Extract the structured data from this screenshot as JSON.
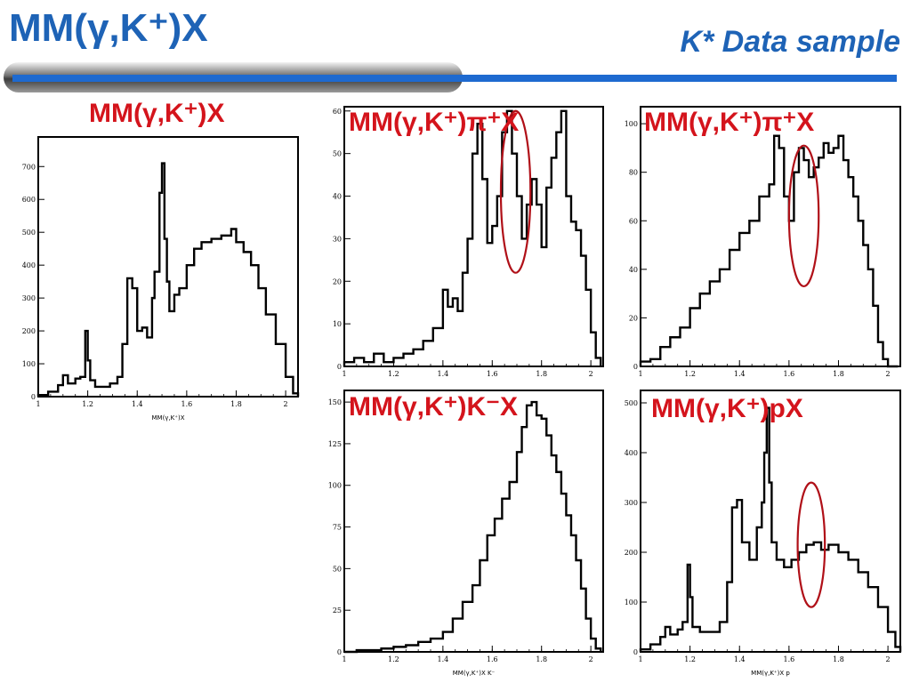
{
  "page": {
    "title": "MM(γ,K⁺)X",
    "subtitle": "K* Data sample"
  },
  "colors": {
    "title": "#1e63b6",
    "label": "#d4141c",
    "accent_bar": "#1e6ad0",
    "ellipse": "#b01018"
  },
  "chart_data": [
    {
      "id": "p1",
      "type": "histogram",
      "label": "MM(γ,K⁺)X",
      "xlabel": "MM(γ,K⁺)X",
      "xlim": [
        1.0,
        2.05
      ],
      "ylim": [
        0,
        790
      ],
      "xticks": [
        1,
        1.2,
        1.4,
        1.6,
        1.8,
        2
      ],
      "yticks": [
        0,
        100,
        200,
        300,
        400,
        500,
        600,
        700
      ],
      "x": [
        1.0,
        1.04,
        1.08,
        1.1,
        1.12,
        1.15,
        1.17,
        1.19,
        1.2,
        1.21,
        1.23,
        1.26,
        1.29,
        1.32,
        1.34,
        1.36,
        1.38,
        1.4,
        1.42,
        1.44,
        1.46,
        1.47,
        1.49,
        1.5,
        1.51,
        1.52,
        1.53,
        1.55,
        1.57,
        1.6,
        1.63,
        1.66,
        1.7,
        1.74,
        1.78,
        1.8,
        1.83,
        1.86,
        1.89,
        1.92,
        1.96,
        2.0,
        2.03
      ],
      "values": [
        5,
        15,
        35,
        65,
        40,
        55,
        60,
        200,
        110,
        50,
        30,
        30,
        40,
        60,
        160,
        360,
        330,
        200,
        210,
        180,
        300,
        380,
        620,
        710,
        480,
        350,
        260,
        310,
        330,
        400,
        450,
        470,
        480,
        490,
        510,
        470,
        440,
        400,
        330,
        250,
        160,
        60,
        10
      ],
      "ellipse": null
    },
    {
      "id": "p2",
      "type": "histogram",
      "label": "MM(γ,K⁺)π⁺X",
      "xlabel": "",
      "xlim": [
        1.0,
        2.05
      ],
      "ylim": [
        0,
        61
      ],
      "xticks": [
        1,
        1.2,
        1.4,
        1.6,
        1.8,
        2
      ],
      "yticks": [
        0,
        10,
        20,
        30,
        40,
        50,
        60
      ],
      "x": [
        1.0,
        1.04,
        1.08,
        1.12,
        1.16,
        1.2,
        1.24,
        1.28,
        1.32,
        1.36,
        1.4,
        1.42,
        1.44,
        1.46,
        1.48,
        1.5,
        1.52,
        1.54,
        1.56,
        1.58,
        1.6,
        1.62,
        1.64,
        1.66,
        1.68,
        1.7,
        1.72,
        1.74,
        1.76,
        1.78,
        1.8,
        1.82,
        1.84,
        1.86,
        1.88,
        1.9,
        1.92,
        1.94,
        1.96,
        1.98,
        2.0,
        2.02
      ],
      "values": [
        1,
        2,
        1,
        3,
        1,
        2,
        3,
        4,
        6,
        9,
        18,
        14,
        16,
        13,
        22,
        30,
        50,
        57,
        44,
        29,
        33,
        40,
        55,
        60,
        50,
        40,
        30,
        38,
        44,
        38,
        28,
        42,
        49,
        55,
        60,
        40,
        34,
        32,
        26,
        18,
        8,
        2
      ],
      "ellipse": {
        "cx": 1.695,
        "cy": 41,
        "rx": 0.06,
        "ry": 19
      }
    },
    {
      "id": "p3",
      "type": "histogram",
      "label": "MM(γ,K⁺)π⁺X",
      "xlabel": "",
      "xlim": [
        1.0,
        2.05
      ],
      "ylim": [
        0,
        107
      ],
      "xticks": [
        1,
        1.2,
        1.4,
        1.6,
        1.8,
        2
      ],
      "yticks": [
        0,
        20,
        40,
        60,
        80,
        100
      ],
      "x": [
        1.0,
        1.04,
        1.08,
        1.12,
        1.16,
        1.2,
        1.24,
        1.28,
        1.32,
        1.36,
        1.4,
        1.44,
        1.48,
        1.52,
        1.54,
        1.56,
        1.58,
        1.6,
        1.62,
        1.64,
        1.66,
        1.68,
        1.7,
        1.72,
        1.74,
        1.76,
        1.78,
        1.8,
        1.82,
        1.84,
        1.86,
        1.88,
        1.9,
        1.92,
        1.94,
        1.96,
        1.98,
        2.0,
        2.02
      ],
      "values": [
        2,
        3,
        8,
        12,
        16,
        24,
        30,
        35,
        40,
        48,
        55,
        60,
        70,
        75,
        95,
        90,
        70,
        60,
        80,
        90,
        85,
        78,
        82,
        86,
        92,
        88,
        90,
        95,
        85,
        78,
        70,
        60,
        50,
        40,
        25,
        10,
        3,
        0,
        0
      ],
      "ellipse": {
        "cx": 1.66,
        "cy": 62,
        "rx": 0.06,
        "ry": 29
      }
    },
    {
      "id": "p4",
      "type": "histogram",
      "label": "MM(γ,K⁺)K⁻X",
      "xlabel": "MM(γ,K⁺)X K⁻",
      "xlim": [
        1.0,
        2.05
      ],
      "ylim": [
        0,
        157
      ],
      "xticks": [
        1,
        1.2,
        1.4,
        1.6,
        1.8,
        2
      ],
      "yticks": [
        0,
        25,
        50,
        75,
        100,
        125,
        150
      ],
      "x": [
        1.0,
        1.05,
        1.1,
        1.15,
        1.2,
        1.25,
        1.3,
        1.35,
        1.4,
        1.44,
        1.48,
        1.52,
        1.55,
        1.58,
        1.61,
        1.64,
        1.67,
        1.7,
        1.72,
        1.74,
        1.76,
        1.78,
        1.8,
        1.82,
        1.84,
        1.86,
        1.88,
        1.9,
        1.92,
        1.94,
        1.96,
        1.98,
        2.0,
        2.02
      ],
      "values": [
        0,
        1,
        1,
        2,
        3,
        4,
        6,
        8,
        12,
        20,
        30,
        40,
        55,
        70,
        80,
        92,
        102,
        120,
        135,
        148,
        150,
        142,
        140,
        130,
        118,
        108,
        95,
        82,
        70,
        55,
        38,
        20,
        8,
        2
      ],
      "ellipse": null
    },
    {
      "id": "p5",
      "type": "histogram",
      "label": "MM(γ,K⁺)pX",
      "xlabel": "MM(γ,K⁺)X p",
      "xlim": [
        1.0,
        2.05
      ],
      "ylim": [
        0,
        525
      ],
      "xticks": [
        1,
        1.2,
        1.4,
        1.6,
        1.8,
        2
      ],
      "yticks": [
        0,
        100,
        200,
        300,
        400,
        500
      ],
      "x": [
        1.0,
        1.04,
        1.08,
        1.1,
        1.12,
        1.15,
        1.17,
        1.19,
        1.2,
        1.21,
        1.24,
        1.28,
        1.32,
        1.35,
        1.37,
        1.39,
        1.41,
        1.44,
        1.47,
        1.49,
        1.5,
        1.51,
        1.52,
        1.53,
        1.55,
        1.58,
        1.61,
        1.64,
        1.67,
        1.7,
        1.73,
        1.76,
        1.8,
        1.84,
        1.88,
        1.92,
        1.96,
        2.0,
        2.03
      ],
      "values": [
        5,
        15,
        30,
        50,
        35,
        45,
        60,
        175,
        110,
        50,
        40,
        40,
        60,
        140,
        290,
        305,
        220,
        185,
        250,
        300,
        400,
        490,
        340,
        220,
        185,
        170,
        185,
        200,
        215,
        220,
        205,
        215,
        200,
        185,
        160,
        130,
        90,
        40,
        10
      ],
      "ellipse": {
        "cx": 1.69,
        "cy": 215,
        "rx": 0.055,
        "ry": 125
      }
    }
  ]
}
